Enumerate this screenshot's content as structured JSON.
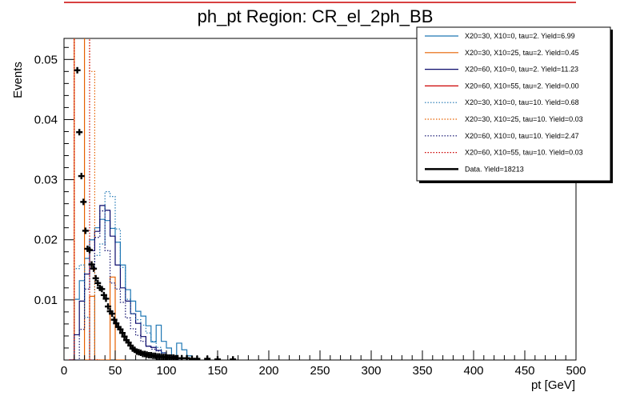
{
  "chart_data": {
    "type": "line",
    "title": "ph_pt Region: CR_el_2ph_BB",
    "xlabel": "pt [GeV]",
    "ylabel": "Events",
    "xlim": [
      0,
      500
    ],
    "ylim": [
      0,
      0.0535
    ],
    "x_ticks": [
      0,
      50,
      100,
      150,
      200,
      250,
      300,
      350,
      400,
      450,
      500
    ],
    "x_tick_labels": [
      "0",
      "50",
      "100",
      "150",
      "200",
      "250",
      "300",
      "350",
      "400",
      "450",
      "500"
    ],
    "y_ticks": [
      0.01,
      0.02,
      0.03,
      0.04,
      0.05
    ],
    "y_tick_labels": [
      "0.01",
      "0.02",
      "0.03",
      "0.04",
      "0.05"
    ],
    "grid": false,
    "legend_position": "top-right",
    "bin_width": 5,
    "series": [
      {
        "name": "X20=30, X10=0, tau=2. Yield=6.99",
        "color": "#1f77b4",
        "style": "solid",
        "x": [
          5,
          10,
          15,
          20,
          25,
          30,
          35,
          40,
          45,
          50,
          55,
          60,
          65,
          70,
          75,
          80,
          85,
          90,
          95,
          100,
          105,
          110,
          115,
          120
        ],
        "values": [
          0.0,
          0.0101,
          0.0132,
          0.0169,
          0.02,
          0.022,
          0.0234,
          0.0232,
          0.0219,
          0.0196,
          0.0158,
          0.0117,
          0.0098,
          0.0081,
          0.0073,
          0.0057,
          0.003,
          0.0058,
          0.0031,
          0.002,
          0.0006,
          0.0028,
          0.0017,
          0.0007
        ]
      },
      {
        "name": "X20=30, X10=25, tau=2. Yield=0.45",
        "color": "#e66101",
        "style": "solid",
        "x": [
          5,
          10,
          15,
          20,
          25,
          30,
          35,
          40,
          45,
          50,
          55
        ],
        "values": [
          0.0,
          0.0536,
          0.0536,
          0.0,
          0.0106,
          0.0,
          0.0,
          0.0,
          0.0138,
          0.0,
          0.0
        ]
      },
      {
        "name": "X20=60, X10=0, tau=2. Yield=11.23",
        "color": "#0a0a6b",
        "style": "solid",
        "x": [
          5,
          10,
          15,
          20,
          25,
          30,
          35,
          40,
          45,
          50,
          55,
          60,
          65,
          70,
          75,
          80,
          85,
          90,
          95,
          100,
          105,
          110
        ],
        "values": [
          0.0,
          0.0042,
          0.0098,
          0.0143,
          0.0182,
          0.0214,
          0.0257,
          0.0249,
          0.0206,
          0.0158,
          0.012,
          0.0098,
          0.0077,
          0.0061,
          0.0039,
          0.0023,
          0.0021,
          0.0016,
          0.0012,
          0.0008,
          0.0006,
          0.0002
        ]
      },
      {
        "name": "X20=60, X10=55, tau=2. Yield=0.00",
        "color": "#cc0000",
        "style": "solid",
        "x": [],
        "values": []
      },
      {
        "name": "X20=30, X10=0, tau=10. Yield=0.68",
        "color": "#1f77b4",
        "style": "dotted",
        "x": [
          5,
          10,
          15,
          20,
          25,
          30,
          35,
          40,
          45,
          50,
          55,
          60,
          65,
          70,
          75,
          80,
          85,
          90,
          95,
          100
        ],
        "values": [
          0.0,
          0.0152,
          0.0158,
          0.0071,
          0.0,
          0.0174,
          0.0193,
          0.028,
          0.0272,
          0.0218,
          0.0154,
          0.0101,
          0.0077,
          0.0067,
          0.0058,
          0.0045,
          0.0031,
          0.0021,
          0.0012,
          0.0005
        ]
      },
      {
        "name": "X20=30, X10=25, tau=10. Yield=0.03",
        "color": "#e66101",
        "style": "dotted",
        "x": [
          5,
          10,
          15,
          20,
          25,
          30
        ],
        "values": [
          0.0,
          0.0536,
          0.0536,
          0.0536,
          0.048,
          0.0
        ]
      },
      {
        "name": "X20=60, X10=0, tau=10. Yield=2.47",
        "color": "#0a0a6b",
        "style": "dotted",
        "x": [
          5,
          10,
          15,
          20,
          25,
          30,
          35,
          40,
          45,
          50,
          55,
          60,
          65,
          70,
          75,
          80,
          85,
          90,
          95,
          100
        ],
        "values": [
          0.0,
          0.0,
          0.0051,
          0.0118,
          0.0152,
          0.0204,
          0.0248,
          0.0182,
          0.0128,
          0.0118,
          0.0096,
          0.007,
          0.0052,
          0.0041,
          0.0031,
          0.0023,
          0.0018,
          0.0015,
          0.0009,
          0.0003
        ]
      },
      {
        "name": "X20=60, X10=55, tau=10. Yield=0.03",
        "color": "#cc0000",
        "style": "dotted",
        "x": [
          5,
          10,
          15,
          20,
          25,
          30
        ],
        "values": [
          0.0,
          0.0536,
          0.0536,
          0.0536,
          0.0,
          0.0
        ]
      },
      {
        "name": "Data. Yield=18213",
        "color": "#000000",
        "style": "markers",
        "x": [
          13,
          15,
          17,
          19,
          21,
          23,
          25,
          27,
          29,
          31,
          33,
          35,
          37,
          39,
          41,
          43,
          45,
          47,
          49,
          51,
          53,
          55,
          57,
          59,
          61,
          63,
          65,
          67,
          69,
          71,
          73,
          75,
          77,
          79,
          81,
          83,
          85,
          87,
          89,
          91,
          93,
          95,
          97,
          99,
          101,
          103,
          105,
          107,
          109,
          111,
          115,
          120,
          125,
          130,
          140,
          150,
          165
        ],
        "values": [
          0.0482,
          0.0379,
          0.0306,
          0.0263,
          0.0215,
          0.0185,
          0.0183,
          0.0159,
          0.0152,
          0.0136,
          0.0128,
          0.012,
          0.0118,
          0.0108,
          0.0102,
          0.0089,
          0.0081,
          0.0077,
          0.0067,
          0.0061,
          0.0055,
          0.0051,
          0.0045,
          0.0039,
          0.0033,
          0.0029,
          0.0024,
          0.0019,
          0.0017,
          0.0014,
          0.0013,
          0.0012,
          0.001,
          0.001,
          0.0009,
          0.0008,
          0.0008,
          0.0007,
          0.0007,
          0.0006,
          0.0006,
          0.0005,
          0.0005,
          0.0005,
          0.0004,
          0.0004,
          0.0004,
          0.0004,
          0.0003,
          0.0003,
          0.0003,
          0.0003,
          0.0002,
          0.0002,
          0.0002,
          0.0001,
          0.0001
        ]
      }
    ]
  }
}
